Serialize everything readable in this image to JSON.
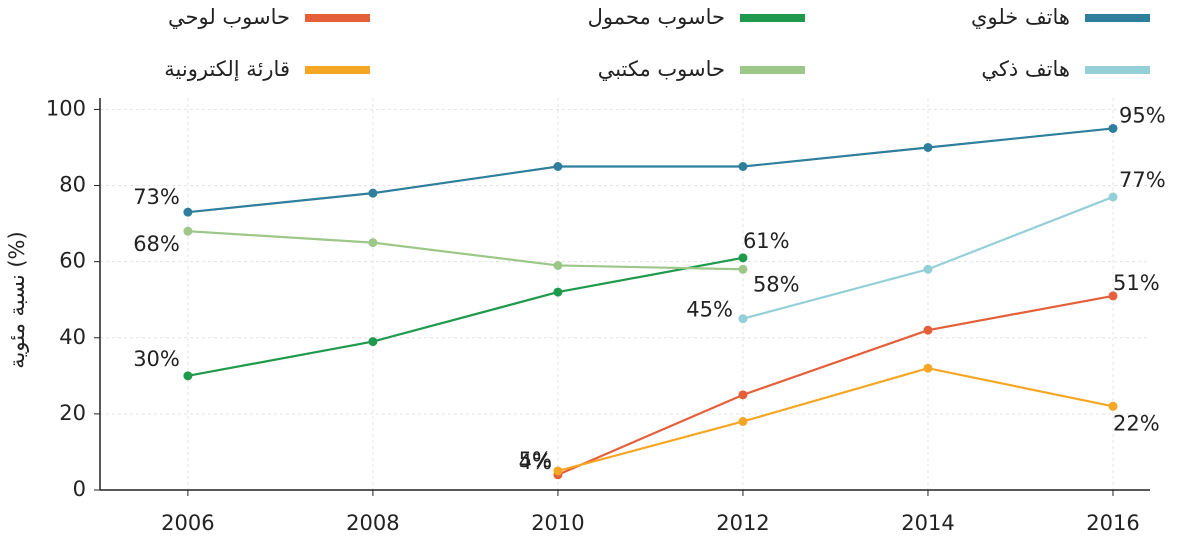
{
  "chart_data": {
    "type": "line",
    "y_label": "نسبة مئوية (%)",
    "x": [
      2006,
      2008,
      2010,
      2012,
      2014,
      2016
    ],
    "xlim": [
      2005.05,
      2016.4
    ],
    "xticks": [
      2006,
      2008,
      2010,
      2012,
      2014,
      2016
    ],
    "ylim": [
      0,
      103
    ],
    "yticks": [
      0,
      20,
      40,
      60,
      80,
      100
    ],
    "grid": true,
    "legend": "top",
    "series": [
      {
        "name": "هاتف خلوي",
        "color": "#2f7f9c",
        "values": [
          73,
          78,
          85,
          85,
          90,
          95
        ],
        "value_labels": [
          "73%",
          null,
          null,
          null,
          null,
          "95%"
        ]
      },
      {
        "name": "حاسوب محمول",
        "color": "#1f9a4c",
        "values": [
          30,
          39,
          52,
          61,
          null,
          null
        ],
        "value_labels": [
          "30%",
          null,
          null,
          "61%",
          null,
          null
        ]
      },
      {
        "name": "حاسوب لوحي",
        "color": "#e5603a",
        "values": [
          null,
          null,
          4,
          25,
          42,
          51
        ],
        "value_labels": [
          null,
          null,
          "4%",
          null,
          null,
          "51%"
        ]
      },
      {
        "name": "هاتف ذكي",
        "color": "#95cfd7",
        "values": [
          null,
          null,
          null,
          45,
          58,
          77
        ],
        "value_labels": [
          null,
          null,
          null,
          "45%",
          null,
          "77%"
        ]
      },
      {
        "name": "حاسوب مكتبي",
        "color": "#9cc788",
        "values": [
          68,
          65,
          59,
          58,
          null,
          null
        ],
        "value_labels": [
          "68%",
          null,
          null,
          "58%",
          null,
          null
        ]
      },
      {
        "name": "قارئة إلكترونية",
        "color": "#f5a623",
        "values": [
          null,
          null,
          5,
          18,
          32,
          22
        ],
        "value_labels": [
          null,
          null,
          "5%",
          null,
          null,
          "22%"
        ]
      }
    ]
  }
}
